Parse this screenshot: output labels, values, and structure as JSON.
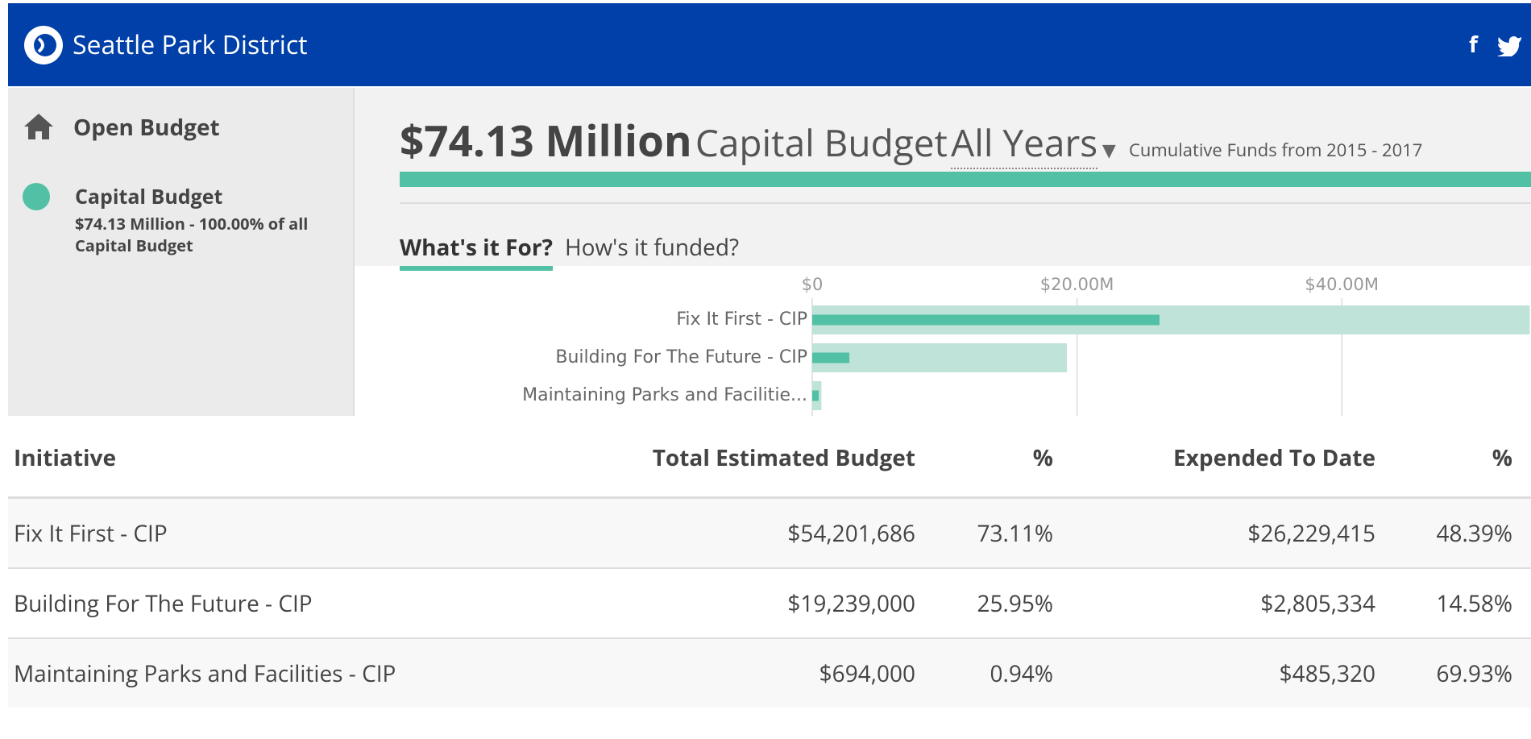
{
  "header": {
    "title": "Seattle Park District",
    "social": [
      "f"
    ]
  },
  "sidebar": {
    "heading": "Open Budget",
    "item": {
      "name": "Capital Budget",
      "detail": "$74.13 Million - 100.00% of all Capital Budget"
    }
  },
  "summary": {
    "amount": "$74.13 Million",
    "label": "Capital Budget",
    "period": "All Years",
    "note": "Cumulative Funds from 2015 - 2017"
  },
  "tabs": [
    "What's it For?",
    "How's it funded?"
  ],
  "chart_data": {
    "type": "bar",
    "orientation": "horizontal",
    "categories": [
      "Fix It First - CIP",
      "Building For The Future - CIP",
      "Maintaining Parks and Facilitie..."
    ],
    "series": [
      {
        "name": "Total Estimated Budget",
        "color": "#bfe3d8",
        "values": [
          54201686,
          19239000,
          694000
        ]
      },
      {
        "name": "Expended To Date",
        "color": "#52c0a4",
        "values": [
          26229415,
          2805334,
          485320
        ]
      }
    ],
    "xlim": [
      0,
      54290000
    ],
    "xticks": [
      {
        "value": 0,
        "label": "$0"
      },
      {
        "value": 20000000,
        "label": "$20.00M"
      },
      {
        "value": 40000000,
        "label": "$40.00M"
      }
    ],
    "grid": true
  },
  "table": {
    "columns": [
      "Initiative",
      "Total Estimated Budget",
      "%",
      "Expended To Date",
      "%"
    ],
    "rows": [
      [
        "Fix It First - CIP",
        "$54,201,686",
        "73.11%",
        "$26,229,415",
        "48.39%"
      ],
      [
        "Building For The Future - CIP",
        "$19,239,000",
        "25.95%",
        "$2,805,334",
        "14.58%"
      ],
      [
        "Maintaining Parks and Facilities - CIP",
        "$694,000",
        "0.94%",
        "$485,320",
        "69.93%"
      ]
    ]
  }
}
